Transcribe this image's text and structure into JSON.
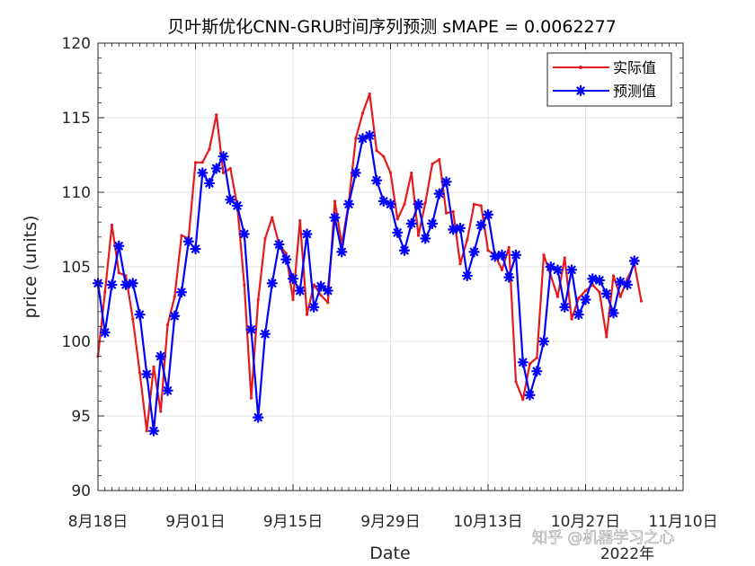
{
  "chart_data": {
    "type": "line",
    "title": "贝叶斯优化CNN-GRU时间序列预测 sMAPE = 0.0062277",
    "xlabel": "Date",
    "ylabel": "price (units)",
    "ylim": [
      90,
      120
    ],
    "yticks": [
      90,
      95,
      100,
      105,
      110,
      115,
      120
    ],
    "xlim_days": [
      0,
      84
    ],
    "xticks": [
      {
        "day": 0,
        "label": "8月18日"
      },
      {
        "day": 14,
        "label": "9月01日"
      },
      {
        "day": 28,
        "label": "9月15日"
      },
      {
        "day": 42,
        "label": "9月29日"
      },
      {
        "day": 56,
        "label": "10月13日"
      },
      {
        "day": 70,
        "label": "10月27日"
      },
      {
        "day": 84,
        "label": "11月10日"
      }
    ],
    "year_label": "2022年",
    "grid": true,
    "legend_position": "top-right",
    "series": [
      {
        "name": "实际值",
        "color": "#e41a1c",
        "marker": "dot",
        "x": [
          0,
          1,
          2,
          3,
          4,
          5,
          6,
          7,
          8,
          9,
          10,
          11,
          12,
          13,
          14,
          15,
          16,
          17,
          18,
          19,
          20,
          21,
          22,
          23,
          24,
          25,
          26,
          27,
          28,
          29,
          30,
          31,
          32,
          33,
          34,
          35,
          36,
          37,
          38,
          39,
          40,
          41,
          42,
          43,
          44,
          45,
          46,
          47,
          48,
          49,
          50,
          51,
          52,
          53,
          54,
          55,
          56,
          57,
          58,
          59,
          60,
          61,
          62,
          63,
          64,
          65,
          66,
          67,
          68,
          69,
          70,
          71,
          72,
          73,
          74,
          75,
          76,
          77,
          78
        ],
        "y": [
          99.0,
          103.3,
          107.8,
          104.6,
          104.4,
          101.5,
          97.9,
          94.0,
          98.3,
          95.3,
          101.1,
          103.0,
          107.1,
          106.9,
          112.0,
          112.0,
          112.9,
          115.2,
          111.3,
          111.6,
          109.1,
          103.8,
          96.2,
          102.8,
          106.9,
          108.3,
          106.5,
          105.9,
          102.8,
          108.1,
          101.8,
          103.8,
          103.1,
          102.6,
          109.4,
          106.5,
          109.3,
          113.6,
          115.3,
          116.6,
          112.8,
          112.4,
          111.3,
          108.2,
          109.2,
          111.3,
          107.1,
          109.3,
          111.9,
          112.2,
          108.6,
          108.7,
          105.2,
          106.8,
          109.2,
          109.1,
          106.1,
          105.8,
          104.8,
          106.3,
          97.3,
          96.1,
          98.5,
          98.9,
          105.8,
          104.4,
          103.0,
          105.6,
          101.5,
          102.9,
          103.4,
          103.8,
          103.3,
          100.3,
          104.4,
          103.0,
          104.2,
          105.2,
          102.7
        ]
      },
      {
        "name": "预测值",
        "color": "#0000ff",
        "marker": "asterisk",
        "x": [
          0,
          1,
          2,
          3,
          4,
          5,
          6,
          7,
          8,
          9,
          10,
          11,
          12,
          13,
          14,
          15,
          16,
          17,
          18,
          19,
          20,
          21,
          22,
          23,
          24,
          25,
          26,
          27,
          28,
          29,
          30,
          31,
          32,
          33,
          34,
          35,
          36,
          37,
          38,
          39,
          40,
          41,
          42,
          43,
          44,
          45,
          46,
          47,
          48,
          49,
          50,
          51,
          52,
          53,
          54,
          55,
          56,
          57,
          58,
          59,
          60,
          61,
          62,
          63,
          64,
          65,
          66,
          67,
          68,
          69,
          70,
          71,
          72,
          73,
          74,
          75,
          76,
          77,
          78
        ],
        "y": [
          103.9,
          100.6,
          103.8,
          106.4,
          103.8,
          103.9,
          101.8,
          97.8,
          94.0,
          99.0,
          96.7,
          101.7,
          103.3,
          106.7,
          106.2,
          111.3,
          110.6,
          111.6,
          112.4,
          109.5,
          109.1,
          107.2,
          100.8,
          94.9,
          100.5,
          103.9,
          106.5,
          105.5,
          104.2,
          103.4,
          107.2,
          102.3,
          103.7,
          103.4,
          108.3,
          106.0,
          109.2,
          111.3,
          113.6,
          113.8,
          110.8,
          109.4,
          109.2,
          107.3,
          106.1,
          107.9,
          109.2,
          106.9,
          107.9,
          109.9,
          110.7,
          107.5,
          107.6,
          104.4,
          106.0,
          107.8,
          108.5,
          105.7,
          105.8,
          104.3,
          105.8,
          98.6,
          96.4,
          98.0,
          100.0,
          105.0,
          104.8,
          102.3,
          104.8,
          101.8,
          102.8,
          104.2,
          104.1,
          103.2,
          101.9,
          104.0,
          103.8,
          105.4,
          null
        ]
      }
    ]
  },
  "watermark": "知乎 @机器学习之心"
}
